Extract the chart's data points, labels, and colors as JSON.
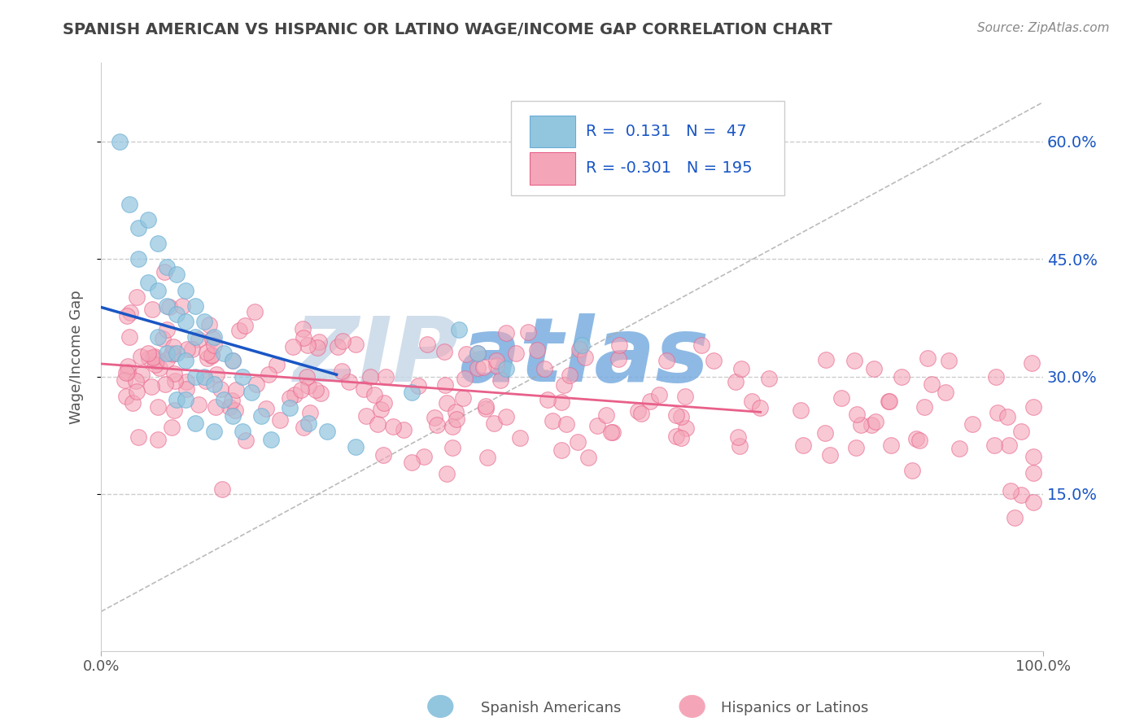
{
  "title": "SPANISH AMERICAN VS HISPANIC OR LATINO WAGE/INCOME GAP CORRELATION CHART",
  "source": "Source: ZipAtlas.com",
  "ylabel": "Wage/Income Gap",
  "xlim": [
    0.0,
    1.0
  ],
  "ylim": [
    -0.05,
    0.7
  ],
  "yticks": [
    0.15,
    0.3,
    0.45,
    0.6
  ],
  "ytick_labels": [
    "15.0%",
    "30.0%",
    "45.0%",
    "60.0%"
  ],
  "blue_R": 0.131,
  "blue_N": 47,
  "pink_R": -0.301,
  "pink_N": 195,
  "blue_color": "#92c5de",
  "blue_edge": "#6baed6",
  "pink_color": "#f4a6b8",
  "pink_edge": "#e8608a",
  "blue_line_color": "#1a56c4",
  "pink_line_color": "#e8608a",
  "blue_label": "Spanish Americans",
  "pink_label": "Hispanics or Latinos",
  "watermark": "ZIPatlas",
  "watermark_gray": "#c8d8e8",
  "watermark_blue": "#7aade0",
  "grid_color": "#cccccc",
  "diag_color": "#aaaaaa",
  "legend_text_color": "#1a56c4",
  "legend_border": "#cccccc",
  "title_color": "#444444",
  "source_color": "#888888",
  "tick_color": "#555555",
  "ylabel_color": "#555555"
}
